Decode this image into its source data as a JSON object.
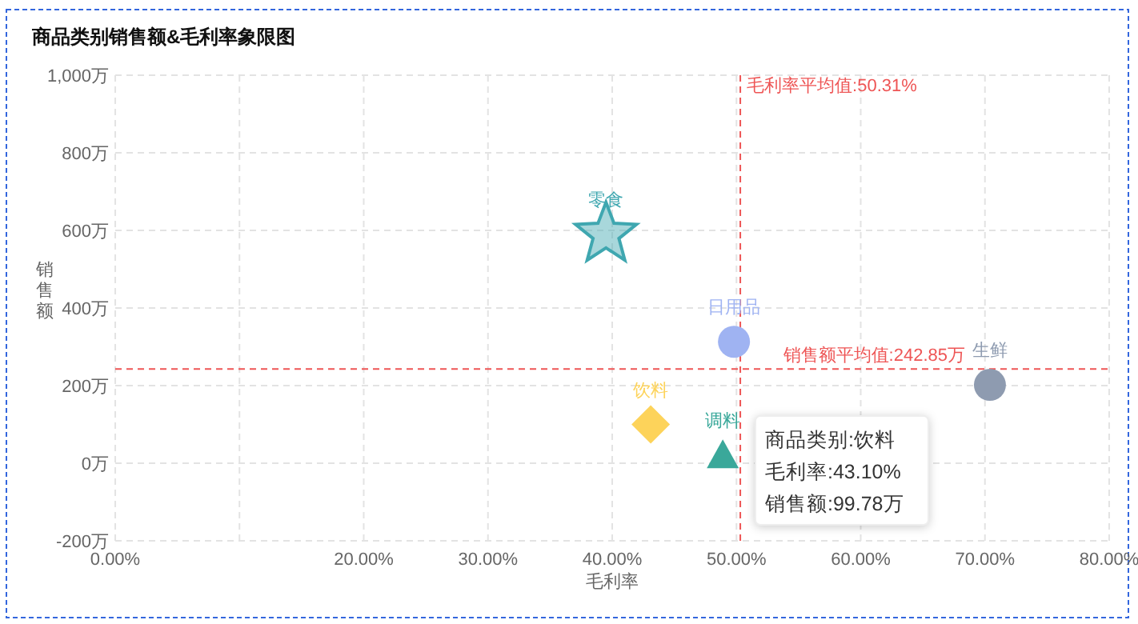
{
  "chart_data": {
    "type": "scatter",
    "title": "商品类别销售额&毛利率象限图",
    "xlabel": "毛利率",
    "ylabel": "销售额",
    "series": [
      {
        "name": "零食",
        "color": "#3fa7b0",
        "marker": "star",
        "x": [
          39.5
        ],
        "values": [
          590
        ]
      },
      {
        "name": "日用品",
        "color": "#9fb3f2",
        "marker": "circle",
        "x": [
          49.8
        ],
        "values": [
          313
        ]
      },
      {
        "name": "生鲜",
        "color": "#8e9bb0",
        "marker": "circle",
        "x": [
          70.4
        ],
        "values": [
          202
        ]
      },
      {
        "name": "饮料",
        "color": "#fdd35a",
        "marker": "diamond",
        "x": [
          43.1
        ],
        "values": [
          99.78
        ]
      },
      {
        "name": "调料",
        "color": "#3aa89a",
        "marker": "triangle",
        "x": [
          48.9
        ],
        "values": [
          20
        ]
      }
    ],
    "xlim": [
      0,
      80
    ],
    "ylim": [
      -200,
      1000
    ],
    "xticks": [
      {
        "value": 0,
        "label": "0.00%"
      },
      {
        "value": 10,
        "label": null
      },
      {
        "value": 20,
        "label": "20.00%"
      },
      {
        "value": 30,
        "label": "30.00%"
      },
      {
        "value": 40,
        "label": "40.00%"
      },
      {
        "value": 50,
        "label": "50.00%"
      },
      {
        "value": 60,
        "label": "60.00%"
      },
      {
        "value": 70,
        "label": "70.00%"
      },
      {
        "value": 80,
        "label": "80.00%"
      }
    ],
    "yticks": [
      {
        "value": -200,
        "label": "-200万"
      },
      {
        "value": 0,
        "label": "0万"
      },
      {
        "value": 200,
        "label": "200万"
      },
      {
        "value": 400,
        "label": "400万"
      },
      {
        "value": 600,
        "label": "600万"
      },
      {
        "value": 800,
        "label": "800万"
      },
      {
        "value": 1000,
        "label": "1,000万"
      }
    ],
    "grid": true,
    "ref_lines": [
      {
        "axis": "x",
        "value": 50.31,
        "label": "毛利率平均值:50.31%",
        "color": "#ee5555",
        "line_style": "dashed"
      },
      {
        "axis": "y",
        "value": 242.85,
        "label": "销售额平均值:242.85万",
        "color": "#ee5555",
        "line_style": "dashed"
      }
    ],
    "annotations": [
      "商品类别:饮料",
      "毛利率:43.10%",
      "销售额:99.78万"
    ]
  }
}
